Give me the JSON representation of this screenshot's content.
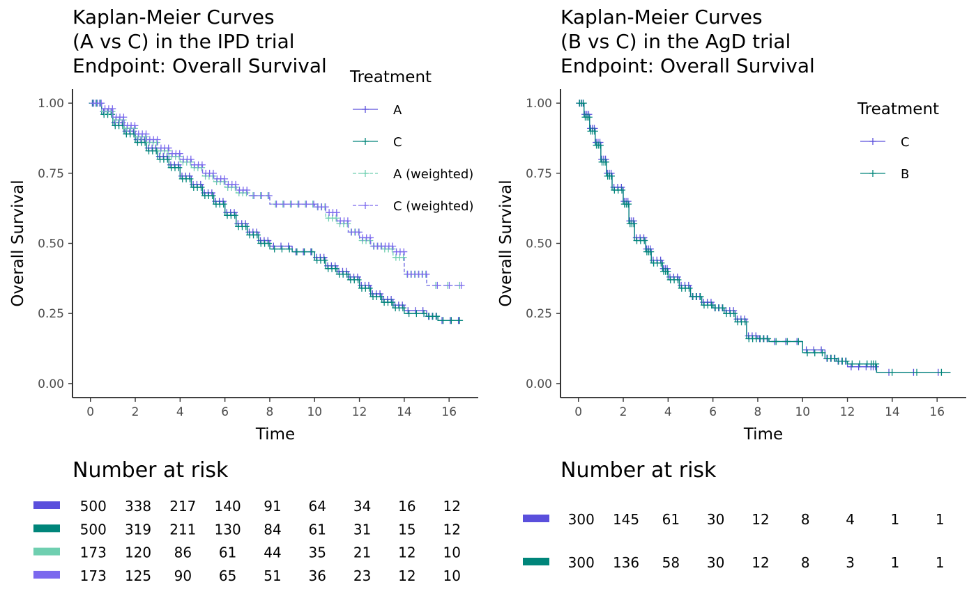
{
  "chart_data": [
    {
      "type": "line",
      "title": [
        "Kaplan-Meier Curves",
        "(A vs C) in the IPD trial",
        "Endpoint: Overall Survival"
      ],
      "xlabel": "Time",
      "ylabel": "Overall Survival",
      "xlim": [
        -0.8,
        17.3
      ],
      "ylim": [
        -0.05,
        1.05
      ],
      "xticks": [
        0,
        2,
        4,
        6,
        8,
        10,
        12,
        14,
        16
      ],
      "yticks": [
        "0.00",
        "0.25",
        "0.50",
        "0.75",
        "1.00"
      ],
      "grid": false,
      "legend": {
        "title": "Treatment",
        "placement": "right"
      },
      "series": [
        {
          "name": "A",
          "color": "#5a4fdc",
          "dashed": false,
          "points": [
            [
              0,
              1
            ],
            [
              0.5,
              0.97
            ],
            [
              1,
              0.93
            ],
            [
              1.5,
              0.9
            ],
            [
              2,
              0.87
            ],
            [
              2.5,
              0.84
            ],
            [
              3,
              0.81
            ],
            [
              3.5,
              0.78
            ],
            [
              4,
              0.74
            ],
            [
              4.5,
              0.71
            ],
            [
              5,
              0.68
            ],
            [
              5.5,
              0.65
            ],
            [
              6,
              0.61
            ],
            [
              6.5,
              0.57
            ],
            [
              7,
              0.54
            ],
            [
              7.5,
              0.51
            ],
            [
              8,
              0.49
            ],
            [
              9,
              0.47
            ],
            [
              10,
              0.45
            ],
            [
              10.5,
              0.42
            ],
            [
              11,
              0.4
            ],
            [
              11.5,
              0.38
            ],
            [
              12,
              0.35
            ],
            [
              12.5,
              0.32
            ],
            [
              13,
              0.3
            ],
            [
              13.5,
              0.28
            ],
            [
              14,
              0.26
            ],
            [
              15,
              0.24
            ],
            [
              15.5,
              0.225
            ],
            [
              16.6,
              0.225
            ]
          ]
        },
        {
          "name": "C",
          "color": "#00857a",
          "dashed": false,
          "points": [
            [
              0,
              1
            ],
            [
              0.5,
              0.96
            ],
            [
              1,
              0.92
            ],
            [
              1.5,
              0.89
            ],
            [
              2,
              0.86
            ],
            [
              2.5,
              0.83
            ],
            [
              3,
              0.8
            ],
            [
              3.5,
              0.77
            ],
            [
              4,
              0.73
            ],
            [
              4.5,
              0.7
            ],
            [
              5,
              0.67
            ],
            [
              5.5,
              0.64
            ],
            [
              6,
              0.6
            ],
            [
              6.5,
              0.56
            ],
            [
              7,
              0.53
            ],
            [
              7.5,
              0.5
            ],
            [
              8,
              0.48
            ],
            [
              9,
              0.47
            ],
            [
              10,
              0.44
            ],
            [
              10.5,
              0.41
            ],
            [
              11,
              0.39
            ],
            [
              11.5,
              0.37
            ],
            [
              12,
              0.34
            ],
            [
              12.5,
              0.31
            ],
            [
              13,
              0.29
            ],
            [
              13.5,
              0.27
            ],
            [
              14,
              0.25
            ],
            [
              15,
              0.24
            ],
            [
              15.5,
              0.225
            ],
            [
              16.6,
              0.225
            ]
          ]
        },
        {
          "name": "A (weighted)",
          "color": "#6fcfb0",
          "dashed": true,
          "points": [
            [
              0,
              1
            ],
            [
              0.5,
              0.97
            ],
            [
              1,
              0.94
            ],
            [
              1.5,
              0.91
            ],
            [
              2,
              0.88
            ],
            [
              2.5,
              0.86
            ],
            [
              3,
              0.83
            ],
            [
              3.5,
              0.81
            ],
            [
              4,
              0.79
            ],
            [
              4.5,
              0.77
            ],
            [
              5,
              0.74
            ],
            [
              5.5,
              0.72
            ],
            [
              6,
              0.7
            ],
            [
              6.5,
              0.68
            ],
            [
              7,
              0.67
            ],
            [
              8,
              0.64
            ],
            [
              9,
              0.64
            ],
            [
              10,
              0.63
            ],
            [
              10.5,
              0.59
            ],
            [
              11,
              0.57
            ],
            [
              11.5,
              0.54
            ],
            [
              12,
              0.51
            ],
            [
              12.5,
              0.49
            ],
            [
              13,
              0.48
            ],
            [
              13.5,
              0.45
            ],
            [
              14,
              0.39
            ],
            [
              14.5,
              0.39
            ],
            [
              15,
              0.35
            ],
            [
              16.6,
              0.35
            ]
          ]
        },
        {
          "name": "C (weighted)",
          "color": "#7b68ee",
          "dashed": true,
          "points": [
            [
              0,
              1
            ],
            [
              0.5,
              0.98
            ],
            [
              1,
              0.95
            ],
            [
              1.5,
              0.92
            ],
            [
              2,
              0.89
            ],
            [
              2.5,
              0.87
            ],
            [
              3,
              0.84
            ],
            [
              3.5,
              0.82
            ],
            [
              4,
              0.8
            ],
            [
              4.5,
              0.78
            ],
            [
              5,
              0.75
            ],
            [
              5.5,
              0.73
            ],
            [
              6,
              0.71
            ],
            [
              6.5,
              0.69
            ],
            [
              7,
              0.67
            ],
            [
              8,
              0.64
            ],
            [
              9,
              0.64
            ],
            [
              10,
              0.63
            ],
            [
              10.5,
              0.61
            ],
            [
              11,
              0.58
            ],
            [
              11.5,
              0.54
            ],
            [
              12,
              0.52
            ],
            [
              12.5,
              0.49
            ],
            [
              13,
              0.49
            ],
            [
              13.5,
              0.47
            ],
            [
              14,
              0.39
            ],
            [
              14.5,
              0.39
            ],
            [
              15,
              0.35
            ],
            [
              16.6,
              0.35
            ]
          ]
        }
      ],
      "risk_table": {
        "title": "Number at risk",
        "rows": [
          {
            "color": "#5a4fdc",
            "values": [
              500,
              338,
              217,
              140,
              91,
              64,
              34,
              16,
              12
            ]
          },
          {
            "color": "#00857a",
            "values": [
              500,
              319,
              211,
              130,
              84,
              61,
              31,
              15,
              12
            ]
          },
          {
            "color": "#6fcfb0",
            "values": [
              173,
              120,
              86,
              61,
              44,
              35,
              21,
              12,
              10
            ]
          },
          {
            "color": "#7b68ee",
            "values": [
              173,
              125,
              90,
              65,
              51,
              36,
              23,
              12,
              10
            ]
          }
        ]
      }
    },
    {
      "type": "line",
      "title": [
        "Kaplan-Meier Curves",
        "(B vs C) in the AgD trial",
        "Endpoint: Overall Survival"
      ],
      "xlabel": "Time",
      "ylabel": "Overall Survival",
      "xlim": [
        -0.8,
        17.3
      ],
      "ylim": [
        -0.05,
        1.05
      ],
      "xticks": [
        0,
        2,
        4,
        6,
        8,
        10,
        12,
        14,
        16
      ],
      "yticks": [
        "0.00",
        "0.25",
        "0.50",
        "0.75",
        "1.00"
      ],
      "grid": false,
      "legend": {
        "title": "Treatment",
        "placement": "top-right"
      },
      "series": [
        {
          "name": "C",
          "color": "#5a4fdc",
          "dashed": false,
          "points": [
            [
              0,
              1
            ],
            [
              0.25,
              0.96
            ],
            [
              0.5,
              0.91
            ],
            [
              0.75,
              0.86
            ],
            [
              1,
              0.8
            ],
            [
              1.25,
              0.75
            ],
            [
              1.5,
              0.7
            ],
            [
              2,
              0.65
            ],
            [
              2.25,
              0.58
            ],
            [
              2.5,
              0.52
            ],
            [
              3,
              0.48
            ],
            [
              3.25,
              0.44
            ],
            [
              3.75,
              0.41
            ],
            [
              4,
              0.38
            ],
            [
              4.5,
              0.35
            ],
            [
              5,
              0.31
            ],
            [
              5.5,
              0.29
            ],
            [
              6,
              0.27
            ],
            [
              6.5,
              0.26
            ],
            [
              7,
              0.23
            ],
            [
              7.5,
              0.17
            ],
            [
              8,
              0.16
            ],
            [
              8.5,
              0.15
            ],
            [
              10,
              0.12
            ],
            [
              11,
              0.09
            ],
            [
              11.5,
              0.08
            ],
            [
              12,
              0.06
            ],
            [
              13,
              0.06
            ],
            [
              13.3,
              0.04
            ],
            [
              16.6,
              0.04
            ]
          ]
        },
        {
          "name": "B",
          "color": "#00857a",
          "dashed": false,
          "points": [
            [
              0,
              1
            ],
            [
              0.25,
              0.95
            ],
            [
              0.5,
              0.9
            ],
            [
              0.75,
              0.85
            ],
            [
              1,
              0.79
            ],
            [
              1.25,
              0.74
            ],
            [
              1.5,
              0.69
            ],
            [
              2,
              0.64
            ],
            [
              2.25,
              0.57
            ],
            [
              2.5,
              0.51
            ],
            [
              3,
              0.47
            ],
            [
              3.25,
              0.43
            ],
            [
              3.75,
              0.4
            ],
            [
              4,
              0.37
            ],
            [
              4.5,
              0.34
            ],
            [
              5,
              0.31
            ],
            [
              5.5,
              0.28
            ],
            [
              6,
              0.27
            ],
            [
              6.5,
              0.25
            ],
            [
              7,
              0.22
            ],
            [
              7.5,
              0.16
            ],
            [
              8,
              0.16
            ],
            [
              8.5,
              0.15
            ],
            [
              10,
              0.11
            ],
            [
              11,
              0.09
            ],
            [
              11.5,
              0.08
            ],
            [
              12,
              0.07
            ],
            [
              13,
              0.07
            ],
            [
              13.3,
              0.04
            ],
            [
              16.6,
              0.04
            ]
          ]
        }
      ],
      "risk_table": {
        "title": "Number at risk",
        "rows": [
          {
            "color": "#5a4fdc",
            "values": [
              300,
              145,
              61,
              30,
              12,
              8,
              4,
              1,
              1
            ]
          },
          {
            "color": "#00857a",
            "values": [
              300,
              136,
              58,
              30,
              12,
              8,
              3,
              1,
              1
            ]
          }
        ]
      }
    }
  ]
}
